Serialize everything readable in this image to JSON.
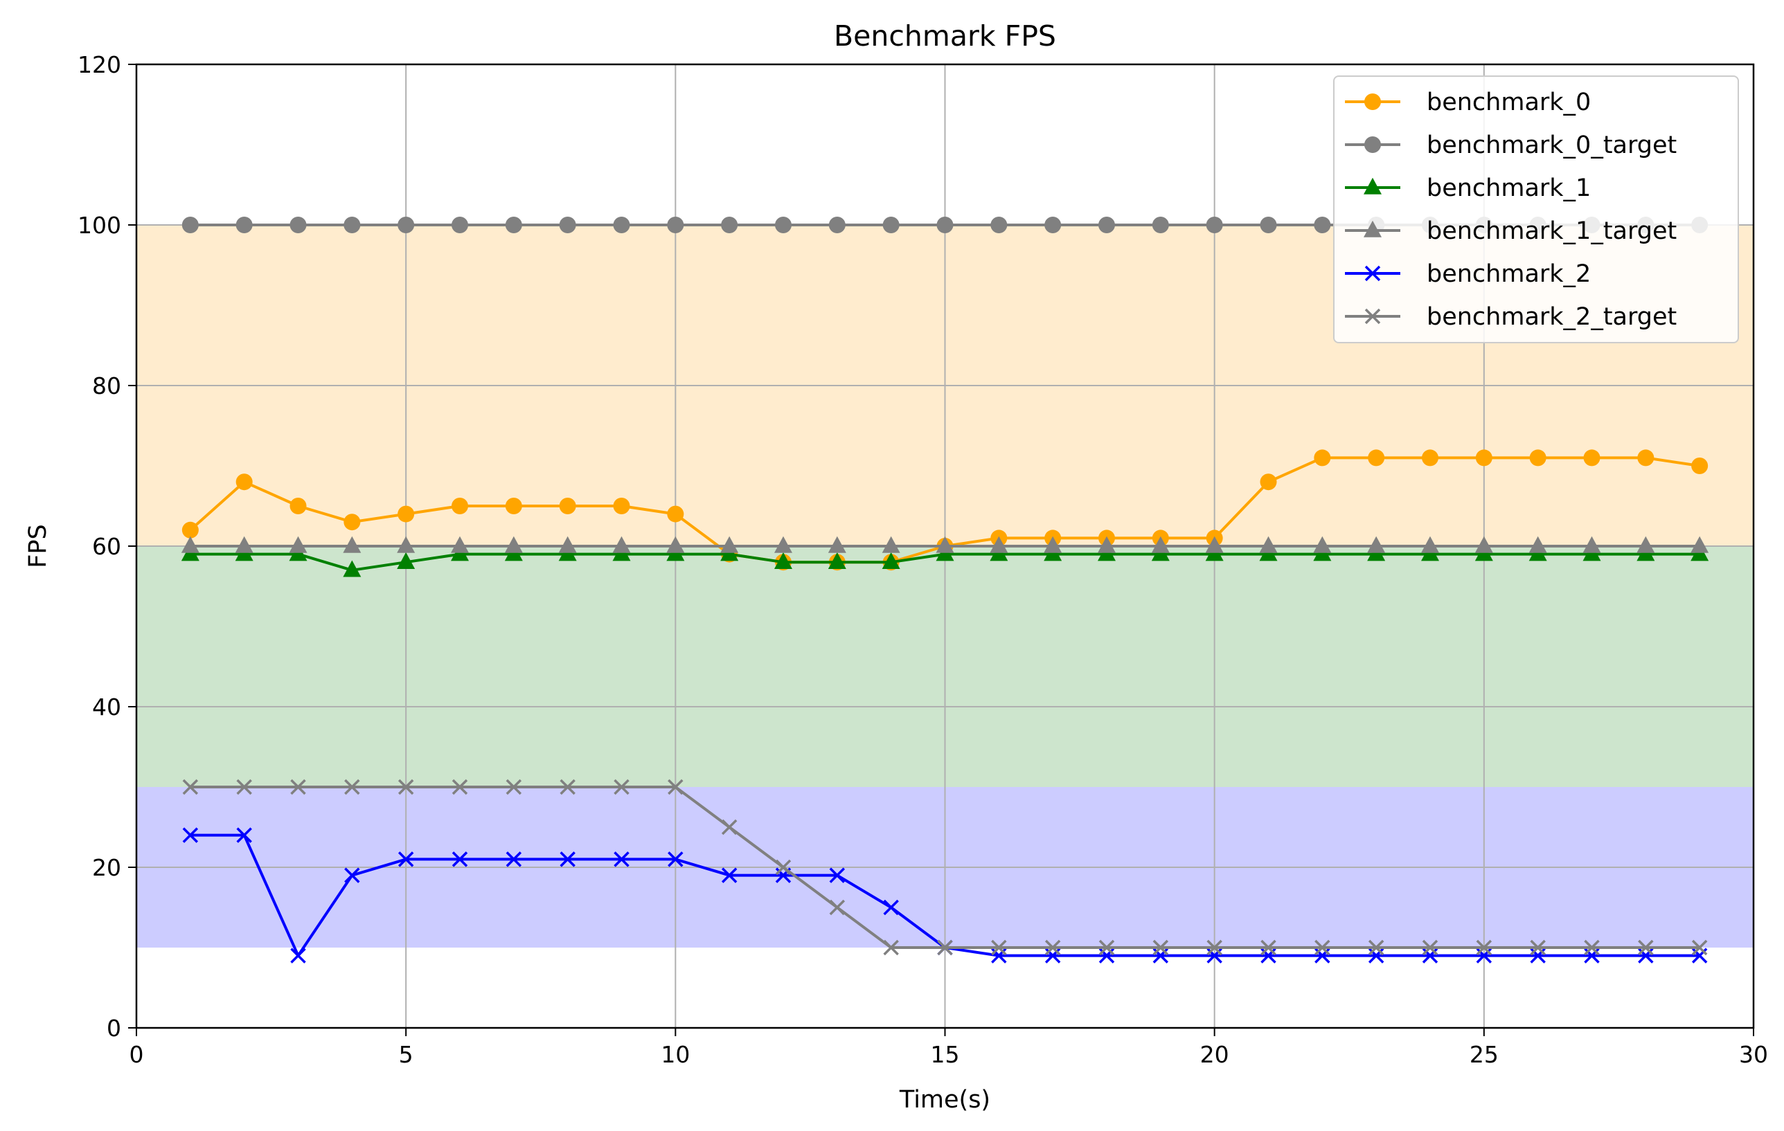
{
  "chart_data": {
    "type": "line",
    "title": "Benchmark FPS",
    "xlabel": "Time(s)",
    "ylabel": "FPS",
    "xlim": [
      0,
      30
    ],
    "ylim": [
      0,
      120
    ],
    "x_ticks": [
      "0",
      "5",
      "10",
      "15",
      "20",
      "25",
      "30"
    ],
    "y_ticks": [
      "0",
      "20",
      "40",
      "60",
      "80",
      "100",
      "120"
    ],
    "grid": true,
    "legend_position": "top-right",
    "bands": [
      {
        "from": 60,
        "to": 100,
        "color": "#ffecce"
      },
      {
        "from": 30,
        "to": 60,
        "color": "#cde5cd"
      },
      {
        "from": 10,
        "to": 30,
        "color": "#ccccff"
      }
    ],
    "x": [
      1,
      2,
      3,
      4,
      5,
      6,
      7,
      8,
      9,
      10,
      11,
      12,
      13,
      14,
      15,
      16,
      17,
      18,
      19,
      20,
      21,
      22,
      23,
      24,
      25,
      26,
      27,
      28,
      29
    ],
    "series": [
      {
        "name": "benchmark_0",
        "color": "#ffa500",
        "marker": "circle",
        "values": [
          62,
          68,
          65,
          63,
          64,
          65,
          65,
          65,
          65,
          64,
          59,
          58,
          58,
          58,
          60,
          61,
          61,
          61,
          61,
          61,
          68,
          71,
          71,
          71,
          71,
          71,
          71,
          71,
          70
        ]
      },
      {
        "name": "benchmark_0_target",
        "color": "#808080",
        "marker": "circle",
        "values": [
          100,
          100,
          100,
          100,
          100,
          100,
          100,
          100,
          100,
          100,
          100,
          100,
          100,
          100,
          100,
          100,
          100,
          100,
          100,
          100,
          100,
          100,
          100,
          100,
          100,
          100,
          100,
          100,
          100
        ]
      },
      {
        "name": "benchmark_1",
        "color": "#008000",
        "marker": "triangle",
        "values": [
          59,
          59,
          59,
          57,
          58,
          59,
          59,
          59,
          59,
          59,
          59,
          58,
          58,
          58,
          59,
          59,
          59,
          59,
          59,
          59,
          59,
          59,
          59,
          59,
          59,
          59,
          59,
          59,
          59
        ]
      },
      {
        "name": "benchmark_1_target",
        "color": "#808080",
        "marker": "triangle",
        "values": [
          60,
          60,
          60,
          60,
          60,
          60,
          60,
          60,
          60,
          60,
          60,
          60,
          60,
          60,
          60,
          60,
          60,
          60,
          60,
          60,
          60,
          60,
          60,
          60,
          60,
          60,
          60,
          60,
          60
        ]
      },
      {
        "name": "benchmark_2",
        "color": "#0000ff",
        "marker": "x",
        "values": [
          24,
          24,
          9,
          19,
          21,
          21,
          21,
          21,
          21,
          21,
          19,
          19,
          19,
          15,
          10,
          9,
          9,
          9,
          9,
          9,
          9,
          9,
          9,
          9,
          9,
          9,
          9,
          9,
          9
        ]
      },
      {
        "name": "benchmark_2_target",
        "color": "#808080",
        "marker": "x",
        "values": [
          30,
          30,
          30,
          30,
          30,
          30,
          30,
          30,
          30,
          30,
          25,
          20,
          15,
          10,
          10,
          10,
          10,
          10,
          10,
          10,
          10,
          10,
          10,
          10,
          10,
          10,
          10,
          10,
          10
        ]
      }
    ]
  }
}
